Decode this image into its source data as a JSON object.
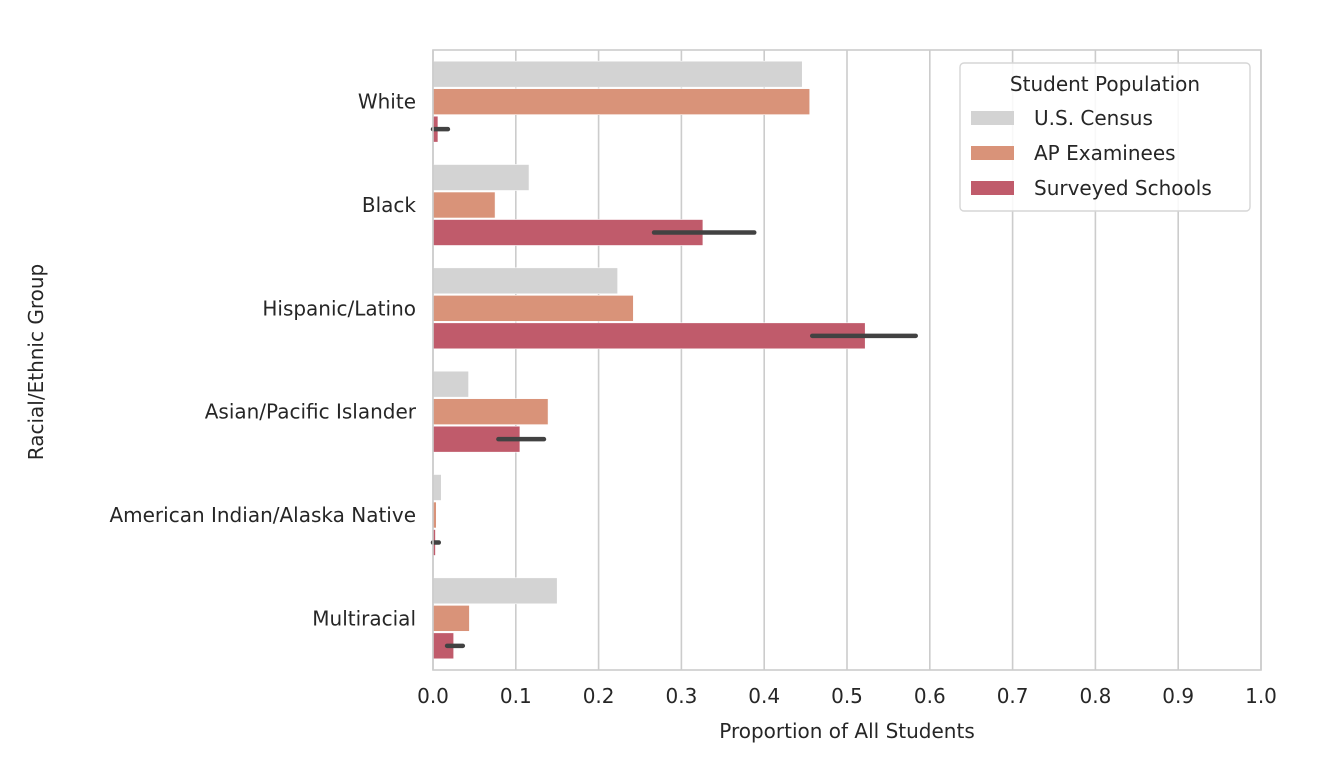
{
  "chart_data": {
    "type": "bar",
    "orientation": "horizontal",
    "title": "",
    "xlabel": "Proportion of All Students",
    "ylabel": "Racial/Ethnic Group",
    "xlim": [
      0.0,
      1.0
    ],
    "xticks": [
      "0.0",
      "0.1",
      "0.2",
      "0.3",
      "0.4",
      "0.5",
      "0.6",
      "0.7",
      "0.8",
      "0.9",
      "1.0"
    ],
    "grid": true,
    "categories": [
      "White",
      "Black",
      "Hispanic/Latino",
      "Asian/Pacific Islander",
      "American Indian/Alaska Native",
      "Multiracial"
    ],
    "legend": {
      "title": "Student Population",
      "placement": "top-right"
    },
    "series": [
      {
        "name": "U.S. Census",
        "color": "#d3d3d3",
        "values": [
          0.446,
          0.116,
          0.223,
          0.043,
          0.01,
          0.15
        ]
      },
      {
        "name": "AP Examinees",
        "color": "#d99379",
        "values": [
          0.455,
          0.075,
          0.242,
          0.139,
          0.004,
          0.044
        ]
      },
      {
        "name": "Surveyed Schools",
        "color": "#c05b6b",
        "values": [
          0.006,
          0.326,
          0.522,
          0.105,
          0.003,
          0.025
        ],
        "error_bars": [
          [
            0.0,
            0.018
          ],
          [
            0.267,
            0.388
          ],
          [
            0.458,
            0.583
          ],
          [
            0.079,
            0.134
          ],
          [
            0.0,
            0.007
          ],
          [
            0.017,
            0.036
          ]
        ]
      }
    ]
  }
}
